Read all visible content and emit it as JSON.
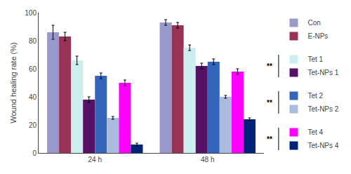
{
  "chart_data": {
    "type": "bar",
    "categories": [
      "24 h",
      "48 h"
    ],
    "ylabel": "Wound healing rate (%)",
    "series": [
      {
        "name": "Con",
        "color": "#9999CC",
        "values": [
          86,
          93
        ],
        "errors": [
          5,
          2
        ]
      },
      {
        "name": "E-NPs",
        "color": "#993355",
        "values": [
          83,
          91
        ],
        "errors": [
          3,
          2
        ]
      },
      {
        "name": "Tet 1",
        "color": "#CCEEEE",
        "values": [
          66,
          75
        ],
        "errors": [
          3,
          2
        ]
      },
      {
        "name": "Tet-NPs 1",
        "color": "#551166",
        "values": [
          38,
          62
        ],
        "errors": [
          2,
          2
        ]
      },
      {
        "name": "Tet 2",
        "color": "#3366BB",
        "values": [
          55,
          65
        ],
        "errors": [
          2,
          2
        ]
      },
      {
        "name": "Tet-NPs 2",
        "color": "#AABBDD",
        "values": [
          25,
          40
        ],
        "errors": [
          1,
          1
        ]
      },
      {
        "name": "Tet 4",
        "color": "#FF00FF",
        "values": [
          50,
          58
        ],
        "errors": [
          2,
          2
        ]
      },
      {
        "name": "Tet-NPs 4",
        "color": "#002277",
        "values": [
          6,
          24
        ],
        "errors": [
          1,
          1
        ]
      }
    ],
    "ylim": [
      0,
      100
    ],
    "yticks": [
      0,
      20,
      40,
      60,
      80,
      100
    ],
    "grid": false,
    "legend": "right",
    "annotations": [
      "**",
      "**",
      "**"
    ]
  }
}
